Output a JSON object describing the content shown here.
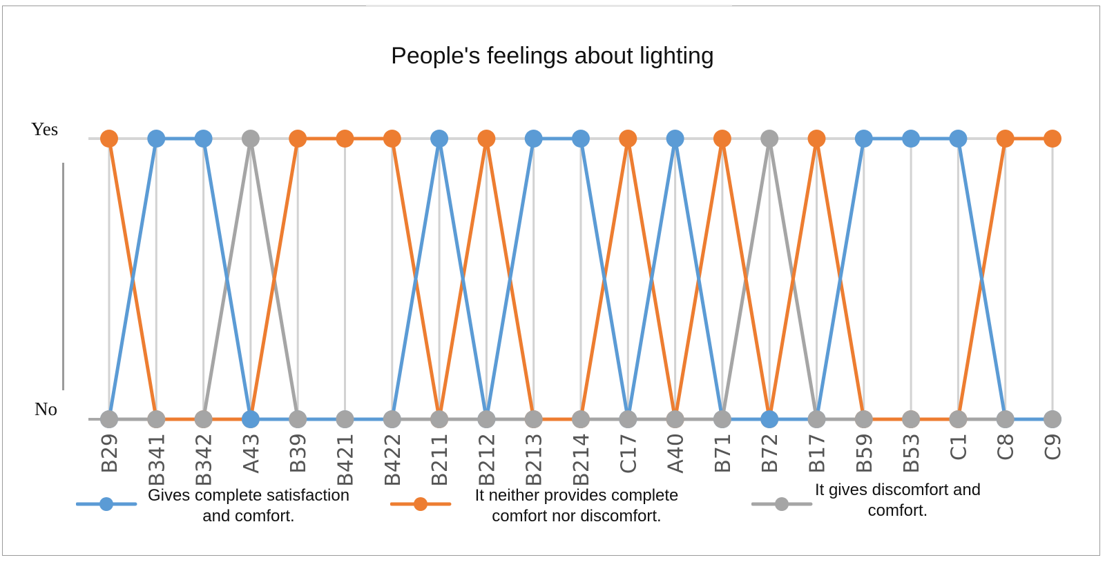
{
  "chart_data": {
    "type": "line",
    "title": "People's feelings about lighting",
    "xlabel": "",
    "ylabel": "",
    "y_tick_labels": [
      "No",
      "Yes"
    ],
    "ylim": [
      0,
      1
    ],
    "grid": "vertical and horizontal gridlines at each category and at Yes/No",
    "legend_position": "bottom",
    "categories": [
      "B29",
      "B341",
      "B342",
      "A43",
      "B39",
      "B421",
      "B422",
      "B211",
      "B212",
      "B213",
      "B214",
      "C17",
      "A40",
      "B71",
      "B72",
      "B17",
      "B59",
      "B53",
      "C1",
      "C8",
      "C9"
    ],
    "series": [
      {
        "name": "Gives complete satisfaction and comfort.",
        "color": "#5b9bd5",
        "values": [
          0,
          1,
          1,
          0,
          0,
          0,
          0,
          1,
          0,
          1,
          1,
          0,
          1,
          0,
          0,
          0,
          1,
          1,
          1,
          0,
          0
        ]
      },
      {
        "name": "It neither provides complete comfort nor discomfort.",
        "color": "#ed7d31",
        "values": [
          1,
          0,
          0,
          0,
          1,
          1,
          1,
          0,
          1,
          0,
          0,
          1,
          0,
          1,
          0,
          1,
          0,
          0,
          0,
          1,
          1
        ]
      },
      {
        "name": "It gives discomfort and comfort.",
        "color": "#a5a5a5",
        "values": [
          0,
          0,
          0,
          1,
          0,
          0,
          0,
          0,
          0,
          0,
          0,
          0,
          0,
          0,
          1,
          0,
          0,
          0,
          0,
          0,
          0
        ]
      }
    ]
  },
  "legend": {
    "items": [
      {
        "line1": "Gives complete satisfaction",
        "line2": "and comfort."
      },
      {
        "line1": "It neither provides complete",
        "line2": "comfort nor discomfort."
      },
      {
        "line1": "It gives discomfort and",
        "line2": "comfort."
      }
    ]
  }
}
